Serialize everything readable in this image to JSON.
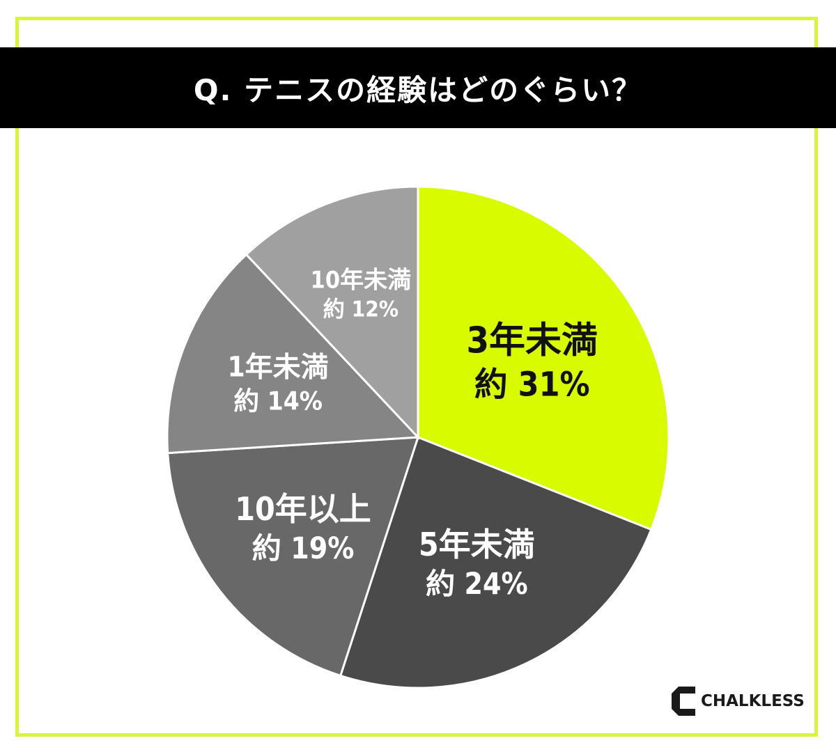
{
  "title": "Q. テニスの経験はどのぐらい？",
  "brand": {
    "name": "CHALKLESS",
    "icon": "chalkless-logo-icon"
  },
  "colors": {
    "accent": "#d8fb00",
    "border": "#d8f53b",
    "title_bg": "#000000"
  },
  "chart_data": {
    "type": "pie",
    "title": "Q. テニスの経験はどのぐらい？",
    "slices": [
      {
        "label": "3年未満",
        "value_label": "約 31%",
        "value": 31,
        "color": "#d8fb00",
        "text_color": "#111111"
      },
      {
        "label": "5年未満",
        "value_label": "約 24%",
        "value": 24,
        "color": "#4a4a4a",
        "text_color": "#ffffff"
      },
      {
        "label": "10年以上",
        "value_label": "約 19%",
        "value": 19,
        "color": "#686868",
        "text_color": "#ffffff"
      },
      {
        "label": "1年未満",
        "value_label": "約 14%",
        "value": 14,
        "color": "#858585",
        "text_color": "#ffffff"
      },
      {
        "label": "10年未満",
        "value_label": "約 12%",
        "value": 12,
        "color": "#a0a0a0",
        "text_color": "#ffffff"
      }
    ]
  }
}
